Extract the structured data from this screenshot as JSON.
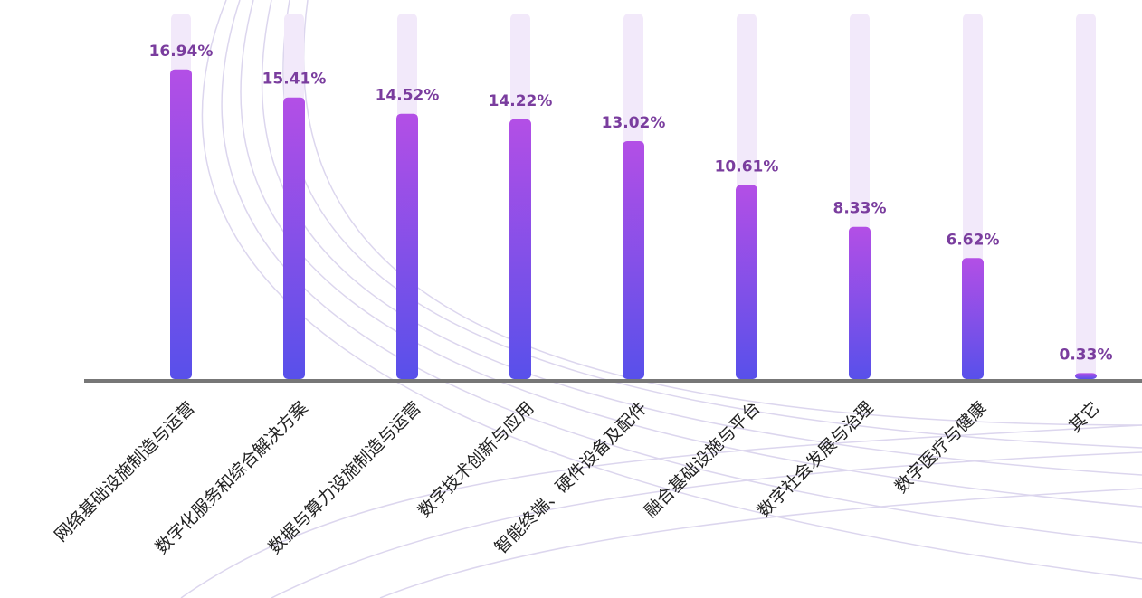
{
  "chart_data": {
    "type": "bar",
    "categories": [
      "网络基础设施制造与运营",
      "数字化服务和综合解决方案",
      "数据与算力设施制造与运营",
      "数字技术创新与应用",
      "智能终端、硬件设备及配件",
      "融合基础设施与平台",
      "数字社会发展与治理",
      "数字医疗与健康",
      "其它"
    ],
    "values": [
      16.94,
      15.41,
      14.52,
      14.22,
      13.02,
      10.61,
      8.33,
      6.62,
      0.33
    ],
    "value_labels": [
      "16.94%",
      "15.41%",
      "14.52%",
      "14.22%",
      "13.02%",
      "10.61%",
      "8.33%",
      "6.62%",
      "0.33%"
    ],
    "ylim": [
      0,
      20
    ],
    "gradient": [
      "#b34fe6",
      "#5850ea"
    ],
    "track_color": "#f2e9fa",
    "label_color": "#7a3d9e"
  }
}
